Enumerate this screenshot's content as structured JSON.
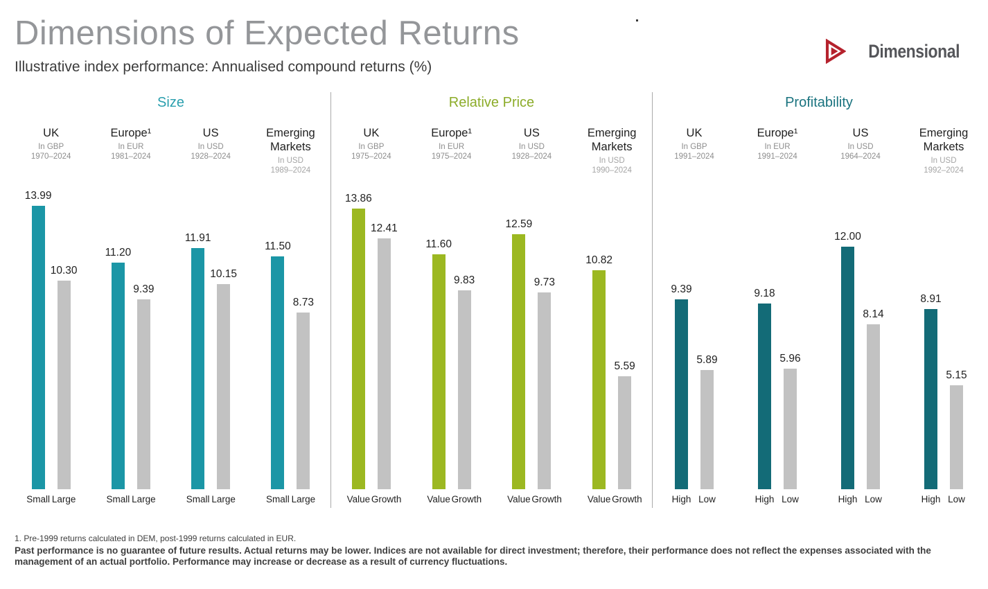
{
  "header": {
    "title": "Dimensions of Expected Returns",
    "subtitle": "Illustrative index performance: Annualised compound returns (%)",
    "brand": "Dimensional",
    "logo_color": "#b5222d"
  },
  "chart_data": {
    "type": "bar",
    "unit": "annualised compound return %",
    "grid": false,
    "legend": false,
    "value_labels": "two decimals above each bar",
    "bar_colors": {
      "size": "#1b96a6",
      "relative_price": "#9cb821",
      "profitability": "#136b77",
      "comparison_gray": "#c2c2c2"
    },
    "panels": [
      {
        "title": "Size",
        "title_color": "#2a9fae",
        "bar_color": "#1b96a6",
        "bar_labels": [
          "Small",
          "Large"
        ],
        "groups": [
          {
            "name": "UK",
            "currency": "In GBP",
            "years": "1970–2024",
            "values": [
              13.99,
              10.3
            ]
          },
          {
            "name": "Europe¹",
            "currency": "In EUR",
            "years": "1981–2024",
            "values": [
              11.2,
              9.39
            ]
          },
          {
            "name": "US",
            "currency": "In USD",
            "years": "1928–2024",
            "values": [
              11.91,
              10.15
            ]
          },
          {
            "name": "Emerging Markets",
            "currency": "In USD",
            "years": "1989–2024",
            "values": [
              11.5,
              8.73
            ]
          }
        ]
      },
      {
        "title": "Relative Price",
        "title_color": "#8cac29",
        "bar_color": "#9cb821",
        "bar_labels": [
          "Value",
          "Growth"
        ],
        "groups": [
          {
            "name": "UK",
            "currency": "In GBP",
            "years": "1975–2024",
            "values": [
              13.86,
              12.41
            ]
          },
          {
            "name": "Europe¹",
            "currency": "In EUR",
            "years": "1975–2024",
            "values": [
              11.6,
              9.83
            ]
          },
          {
            "name": "US",
            "currency": "In USD",
            "years": "1928–2024",
            "values": [
              12.59,
              9.73
            ]
          },
          {
            "name": "Emerging Markets",
            "currency": "In USD",
            "years": "1990–2024",
            "values": [
              10.82,
              5.59
            ]
          }
        ]
      },
      {
        "title": "Profitability",
        "title_color": "#1a737f",
        "bar_color": "#136b77",
        "bar_labels": [
          "High",
          "Low"
        ],
        "groups": [
          {
            "name": "UK",
            "currency": "In GBP",
            "years": "1991–2024",
            "values": [
              9.39,
              5.89
            ]
          },
          {
            "name": "Europe¹",
            "currency": "In EUR",
            "years": "1991–2024",
            "values": [
              9.18,
              5.96
            ]
          },
          {
            "name": "US",
            "currency": "In USD",
            "years": "1964–2024",
            "values": [
              12.0,
              8.14
            ]
          },
          {
            "name": "Emerging Markets",
            "currency": "In USD",
            "years": "1992–2024",
            "values": [
              8.91,
              5.15
            ]
          }
        ]
      }
    ]
  },
  "footer": {
    "footnote": "1. Pre-1999 returns calculated in DEM, post-1999 returns calculated in EUR.",
    "disclaimer": "Past performance is no guarantee of future results. Actual returns may be lower. Indices are not available for direct investment; therefore, their performance does not reflect the expenses associated with the management of an actual portfolio. Performance may increase or decrease as a result of currency fluctuations."
  }
}
